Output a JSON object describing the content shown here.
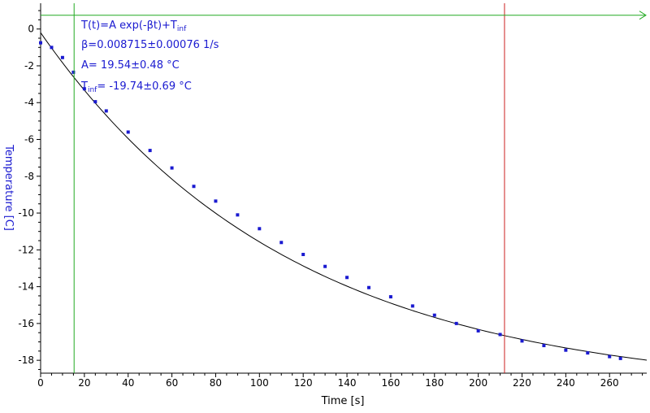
{
  "chart_data": {
    "type": "scatter",
    "title": "",
    "xlabel": "Time [s]",
    "ylabel": "Temperature [C]",
    "xlim": [
      0,
      277
    ],
    "ylim": [
      -18.7,
      1.4
    ],
    "x_ticks": [
      0,
      20,
      40,
      60,
      80,
      100,
      120,
      140,
      160,
      180,
      200,
      220,
      240,
      260
    ],
    "y_ticks": [
      0,
      -2,
      -4,
      -6,
      -8,
      -10,
      -12,
      -14,
      -16,
      -18
    ],
    "grid": false,
    "colors": {
      "data": "#1a1ad0",
      "fit": "#000000",
      "cursor_left": "#22aa22",
      "cursor_right": "#cc2222",
      "axis_text": "#1a1ad0"
    },
    "fit": {
      "model": "T(t)=A exp(-βt)+T_inf",
      "A": 19.54,
      "A_err": 0.48,
      "beta": 0.008715,
      "beta_err": 0.00076,
      "T_inf": -19.74,
      "T_inf_err": 0.69,
      "x_range": [
        0,
        277
      ]
    },
    "annotations": {
      "formula_main": "T(t)=A exp(-βt)+T",
      "formula_sub": "inf",
      "beta_line": "β=0.008715±0.00076 1/s",
      "a_line": "A= 19.54±0.48 °C",
      "tinf_prefix": "T",
      "tinf_sub": "inf",
      "tinf_value": "= -19.74±0.69 °C"
    },
    "cursors": {
      "vertical_left_x": 15.3,
      "vertical_right_x": 212,
      "horizontal_y": 0.75
    },
    "series": [
      {
        "x": [
          0,
          5,
          10,
          15,
          20,
          25,
          30,
          40,
          50,
          60,
          70,
          80,
          90,
          100,
          110,
          120,
          130,
          140,
          150,
          160,
          170,
          180,
          190,
          200,
          210,
          220,
          230,
          240,
          250,
          260,
          265
        ],
        "y": [
          -0.75,
          -1.0,
          -1.55,
          -2.35,
          -3.25,
          -3.95,
          -4.45,
          -5.6,
          -6.6,
          -7.55,
          -8.55,
          -9.35,
          -10.1,
          -10.85,
          -11.6,
          -12.25,
          -12.9,
          -13.5,
          -14.05,
          -14.55,
          -15.05,
          -15.55,
          -16.0,
          -16.4,
          -16.6,
          -16.95,
          -17.2,
          -17.45,
          -17.6,
          -17.8,
          -17.9
        ]
      }
    ]
  }
}
